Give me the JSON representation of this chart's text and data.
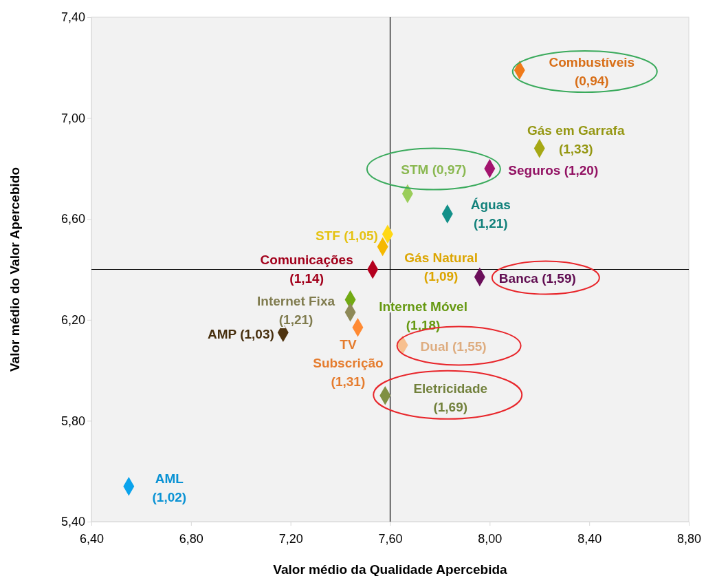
{
  "chart_data": {
    "type": "scatter",
    "xlabel": "Valor médio da Qualidade Apercebida",
    "ylabel": "Valor médio do Valor Apercebido",
    "x": [
      8.12,
      8.2,
      8.0,
      7.67,
      7.83,
      7.59,
      7.57,
      7.53,
      7.96,
      7.44,
      7.44,
      7.17,
      7.47,
      7.65,
      7.58,
      6.55
    ],
    "values": [
      7.19,
      6.88,
      6.8,
      6.7,
      6.62,
      6.54,
      6.49,
      6.4,
      6.37,
      6.28,
      6.23,
      6.15,
      6.17,
      6.1,
      5.9,
      5.54
    ],
    "colors": [
      "#f07a1a",
      "#a6a814",
      "#a3146e",
      "#9acd5a",
      "#139089",
      "#ffd814",
      "#f5b800",
      "#b4001e",
      "#6b0f5a",
      "#72aa14",
      "#8e8a58",
      "#4f3410",
      "#ff8a33",
      "#f7c08f",
      "#7f9043",
      "#0aa3ec"
    ],
    "marker": "diamond",
    "xlim": [
      6.4,
      8.8
    ],
    "ylim": [
      5.4,
      7.4
    ],
    "xticks": [
      {
        "value": 6.4,
        "label": "6,40"
      },
      {
        "value": 6.8,
        "label": "6,80"
      },
      {
        "value": 7.2,
        "label": "7,20"
      },
      {
        "value": 7.6,
        "label": "7,60"
      },
      {
        "value": 8.0,
        "label": "8,00"
      },
      {
        "value": 8.4,
        "label": "8,40"
      },
      {
        "value": 8.8,
        "label": "8,80"
      }
    ],
    "yticks": [
      {
        "value": 5.4,
        "label": "5,40"
      },
      {
        "value": 5.8,
        "label": "5,80"
      },
      {
        "value": 6.2,
        "label": "6,20"
      },
      {
        "value": 6.6,
        "label": "6,60"
      },
      {
        "value": 7.0,
        "label": "7,00"
      },
      {
        "value": 7.4,
        "label": "7,40"
      }
    ],
    "ref_lines": [
      {
        "axis": "x",
        "value": 7.6,
        "color": "#000000"
      },
      {
        "axis": "y",
        "value": 6.4,
        "color": "#000000"
      }
    ],
    "annotations": [
      {
        "text": "Combustíveis\n(0,94)",
        "x": 8.12,
        "y": 7.19
      },
      {
        "text": "Gás em Garrafa\n(1,33)",
        "x": 8.2,
        "y": 6.88
      },
      {
        "text": "Seguros (1,20)",
        "x": 8.0,
        "y": 6.8
      },
      {
        "text": "STM (0,97)",
        "x": 7.67,
        "y": 6.7
      },
      {
        "text": "Águas\n(1,21)",
        "x": 7.83,
        "y": 6.62
      },
      {
        "text": "STF (1,05)",
        "x": 7.59,
        "y": 6.54
      },
      {
        "text": "Gás Natural\n(1,09)",
        "x": 7.57,
        "y": 6.49
      },
      {
        "text": "Comunicações\n(1,14)",
        "x": 7.53,
        "y": 6.4
      },
      {
        "text": "Banca (1,59)",
        "x": 7.96,
        "y": 6.37
      },
      {
        "text": "Internet Móvel\n(1,18)",
        "x": 7.44,
        "y": 6.28
      },
      {
        "text": "Internet Fixa\n(1,21)",
        "x": 7.44,
        "y": 6.23
      },
      {
        "text": "AMP (1,03)",
        "x": 7.17,
        "y": 6.15
      },
      {
        "text": "TV\nSubscrição\n(1,31)",
        "x": 7.47,
        "y": 6.17
      },
      {
        "text": "Dual (1,55)",
        "x": 7.65,
        "y": 6.1
      },
      {
        "text": "Eletricidade\n(1,69)",
        "x": 7.58,
        "y": 5.9
      },
      {
        "text": "AML\n(1,02)",
        "x": 6.55,
        "y": 5.54
      }
    ]
  }
}
